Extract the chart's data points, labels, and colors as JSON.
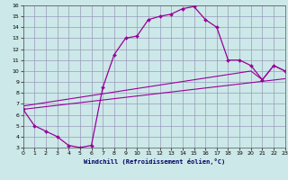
{
  "xlabel": "Windchill (Refroidissement éolien,°C)",
  "bg_color": "#cce8e8",
  "grid_color": "#9999bb",
  "line_color": "#990099",
  "xlim": [
    0,
    23
  ],
  "ylim": [
    3,
    16
  ],
  "xticks": [
    0,
    1,
    2,
    3,
    4,
    5,
    6,
    7,
    8,
    9,
    10,
    11,
    12,
    13,
    14,
    15,
    16,
    17,
    18,
    19,
    20,
    21,
    22,
    23
  ],
  "yticks": [
    3,
    4,
    5,
    6,
    7,
    8,
    9,
    10,
    11,
    12,
    13,
    14,
    15,
    16
  ],
  "line1_x": [
    0,
    1,
    2,
    3,
    4,
    5,
    6,
    7,
    8,
    9,
    10,
    11,
    12,
    13,
    14,
    15,
    16,
    17,
    18,
    19,
    20,
    21,
    22,
    23
  ],
  "line1_y": [
    6.5,
    5.0,
    4.5,
    4.0,
    3.2,
    3.0,
    3.2,
    8.5,
    11.5,
    13.0,
    13.2,
    14.7,
    15.0,
    15.2,
    15.7,
    15.9,
    14.7,
    14.0,
    11.0,
    11.0,
    10.5,
    9.2,
    10.5,
    10.0
  ],
  "line2_x": [
    0,
    23
  ],
  "line2_y": [
    6.5,
    9.3
  ],
  "line3_x": [
    0,
    20,
    21,
    22,
    23
  ],
  "line3_y": [
    6.8,
    10.0,
    9.2,
    10.5,
    10.0
  ]
}
